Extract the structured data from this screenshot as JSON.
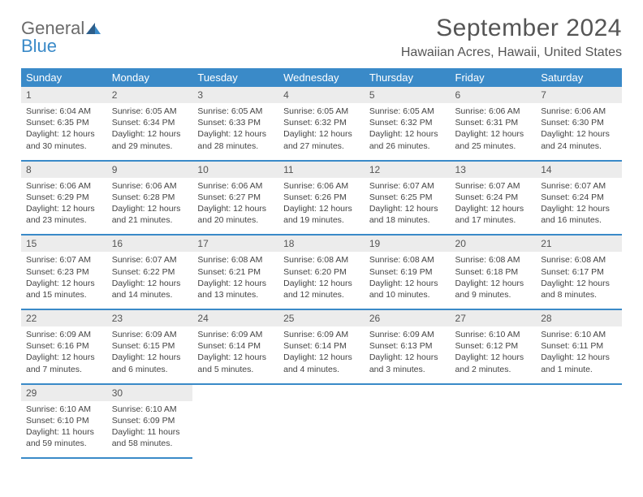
{
  "logo": {
    "general": "General",
    "blue": "Blue"
  },
  "title": "September 2024",
  "location": "Hawaiian Acres, Hawaii, United States",
  "header_row": [
    "Sunday",
    "Monday",
    "Tuesday",
    "Wednesday",
    "Thursday",
    "Friday",
    "Saturday"
  ],
  "colors": {
    "accent": "#3a8ac8",
    "header_text": "#ffffff",
    "daynum_bg": "#ececec",
    "body_text": "#444444",
    "title_text": "#555555"
  },
  "typography": {
    "title_fontsize": 30,
    "location_fontsize": 16,
    "header_fontsize": 13,
    "daynum_fontsize": 12,
    "content_fontsize": 10.5
  },
  "weeks": [
    [
      {
        "num": "1",
        "sunrise": "Sunrise: 6:04 AM",
        "sunset": "Sunset: 6:35 PM",
        "daylight": "Daylight: 12 hours and 30 minutes."
      },
      {
        "num": "2",
        "sunrise": "Sunrise: 6:05 AM",
        "sunset": "Sunset: 6:34 PM",
        "daylight": "Daylight: 12 hours and 29 minutes."
      },
      {
        "num": "3",
        "sunrise": "Sunrise: 6:05 AM",
        "sunset": "Sunset: 6:33 PM",
        "daylight": "Daylight: 12 hours and 28 minutes."
      },
      {
        "num": "4",
        "sunrise": "Sunrise: 6:05 AM",
        "sunset": "Sunset: 6:32 PM",
        "daylight": "Daylight: 12 hours and 27 minutes."
      },
      {
        "num": "5",
        "sunrise": "Sunrise: 6:05 AM",
        "sunset": "Sunset: 6:32 PM",
        "daylight": "Daylight: 12 hours and 26 minutes."
      },
      {
        "num": "6",
        "sunrise": "Sunrise: 6:06 AM",
        "sunset": "Sunset: 6:31 PM",
        "daylight": "Daylight: 12 hours and 25 minutes."
      },
      {
        "num": "7",
        "sunrise": "Sunrise: 6:06 AM",
        "sunset": "Sunset: 6:30 PM",
        "daylight": "Daylight: 12 hours and 24 minutes."
      }
    ],
    [
      {
        "num": "8",
        "sunrise": "Sunrise: 6:06 AM",
        "sunset": "Sunset: 6:29 PM",
        "daylight": "Daylight: 12 hours and 23 minutes."
      },
      {
        "num": "9",
        "sunrise": "Sunrise: 6:06 AM",
        "sunset": "Sunset: 6:28 PM",
        "daylight": "Daylight: 12 hours and 21 minutes."
      },
      {
        "num": "10",
        "sunrise": "Sunrise: 6:06 AM",
        "sunset": "Sunset: 6:27 PM",
        "daylight": "Daylight: 12 hours and 20 minutes."
      },
      {
        "num": "11",
        "sunrise": "Sunrise: 6:06 AM",
        "sunset": "Sunset: 6:26 PM",
        "daylight": "Daylight: 12 hours and 19 minutes."
      },
      {
        "num": "12",
        "sunrise": "Sunrise: 6:07 AM",
        "sunset": "Sunset: 6:25 PM",
        "daylight": "Daylight: 12 hours and 18 minutes."
      },
      {
        "num": "13",
        "sunrise": "Sunrise: 6:07 AM",
        "sunset": "Sunset: 6:24 PM",
        "daylight": "Daylight: 12 hours and 17 minutes."
      },
      {
        "num": "14",
        "sunrise": "Sunrise: 6:07 AM",
        "sunset": "Sunset: 6:24 PM",
        "daylight": "Daylight: 12 hours and 16 minutes."
      }
    ],
    [
      {
        "num": "15",
        "sunrise": "Sunrise: 6:07 AM",
        "sunset": "Sunset: 6:23 PM",
        "daylight": "Daylight: 12 hours and 15 minutes."
      },
      {
        "num": "16",
        "sunrise": "Sunrise: 6:07 AM",
        "sunset": "Sunset: 6:22 PM",
        "daylight": "Daylight: 12 hours and 14 minutes."
      },
      {
        "num": "17",
        "sunrise": "Sunrise: 6:08 AM",
        "sunset": "Sunset: 6:21 PM",
        "daylight": "Daylight: 12 hours and 13 minutes."
      },
      {
        "num": "18",
        "sunrise": "Sunrise: 6:08 AM",
        "sunset": "Sunset: 6:20 PM",
        "daylight": "Daylight: 12 hours and 12 minutes."
      },
      {
        "num": "19",
        "sunrise": "Sunrise: 6:08 AM",
        "sunset": "Sunset: 6:19 PM",
        "daylight": "Daylight: 12 hours and 10 minutes."
      },
      {
        "num": "20",
        "sunrise": "Sunrise: 6:08 AM",
        "sunset": "Sunset: 6:18 PM",
        "daylight": "Daylight: 12 hours and 9 minutes."
      },
      {
        "num": "21",
        "sunrise": "Sunrise: 6:08 AM",
        "sunset": "Sunset: 6:17 PM",
        "daylight": "Daylight: 12 hours and 8 minutes."
      }
    ],
    [
      {
        "num": "22",
        "sunrise": "Sunrise: 6:09 AM",
        "sunset": "Sunset: 6:16 PM",
        "daylight": "Daylight: 12 hours and 7 minutes."
      },
      {
        "num": "23",
        "sunrise": "Sunrise: 6:09 AM",
        "sunset": "Sunset: 6:15 PM",
        "daylight": "Daylight: 12 hours and 6 minutes."
      },
      {
        "num": "24",
        "sunrise": "Sunrise: 6:09 AM",
        "sunset": "Sunset: 6:14 PM",
        "daylight": "Daylight: 12 hours and 5 minutes."
      },
      {
        "num": "25",
        "sunrise": "Sunrise: 6:09 AM",
        "sunset": "Sunset: 6:14 PM",
        "daylight": "Daylight: 12 hours and 4 minutes."
      },
      {
        "num": "26",
        "sunrise": "Sunrise: 6:09 AM",
        "sunset": "Sunset: 6:13 PM",
        "daylight": "Daylight: 12 hours and 3 minutes."
      },
      {
        "num": "27",
        "sunrise": "Sunrise: 6:10 AM",
        "sunset": "Sunset: 6:12 PM",
        "daylight": "Daylight: 12 hours and 2 minutes."
      },
      {
        "num": "28",
        "sunrise": "Sunrise: 6:10 AM",
        "sunset": "Sunset: 6:11 PM",
        "daylight": "Daylight: 12 hours and 1 minute."
      }
    ],
    [
      {
        "num": "29",
        "sunrise": "Sunrise: 6:10 AM",
        "sunset": "Sunset: 6:10 PM",
        "daylight": "Daylight: 11 hours and 59 minutes."
      },
      {
        "num": "30",
        "sunrise": "Sunrise: 6:10 AM",
        "sunset": "Sunset: 6:09 PM",
        "daylight": "Daylight: 11 hours and 58 minutes."
      },
      null,
      null,
      null,
      null,
      null
    ]
  ]
}
